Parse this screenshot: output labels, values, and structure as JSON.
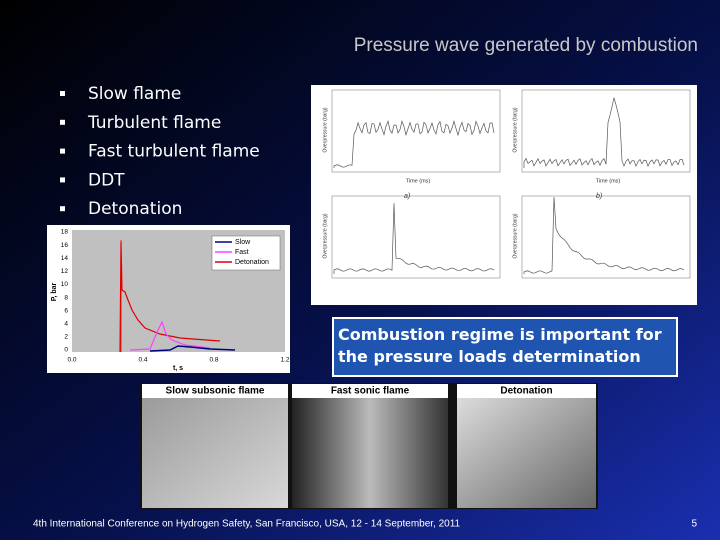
{
  "title": "Pressure wave generated by combustion",
  "bullets": [
    "Slow flame",
    "Turbulent flame",
    "Fast turbulent flame",
    "DDT",
    "Detonation"
  ],
  "left_chart": {
    "y_label": "P, bar",
    "x_label": "t, s",
    "yticks": [
      "0",
      "2",
      "4",
      "6",
      "8",
      "10",
      "12",
      "14",
      "16",
      "18"
    ],
    "xticks": [
      "0.0",
      "0.4",
      "0.8",
      "1.2"
    ],
    "legend": [
      "Slow",
      "Fast",
      "Detonation"
    ]
  },
  "panels": {
    "x_label": "Time (ms)",
    "y_label": "Overpressure (barg)",
    "tags": [
      "a)",
      "b)"
    ]
  },
  "callout": "Combustion regime is important for the pressure loads determination",
  "photos": [
    "Slow subsonic flame",
    "Fast sonic flame",
    "Detonation"
  ],
  "footer": "4th International Conference on Hydrogen Safety, San Francisco, USA, 12 - 14 September, 2011",
  "page_number": "5"
}
